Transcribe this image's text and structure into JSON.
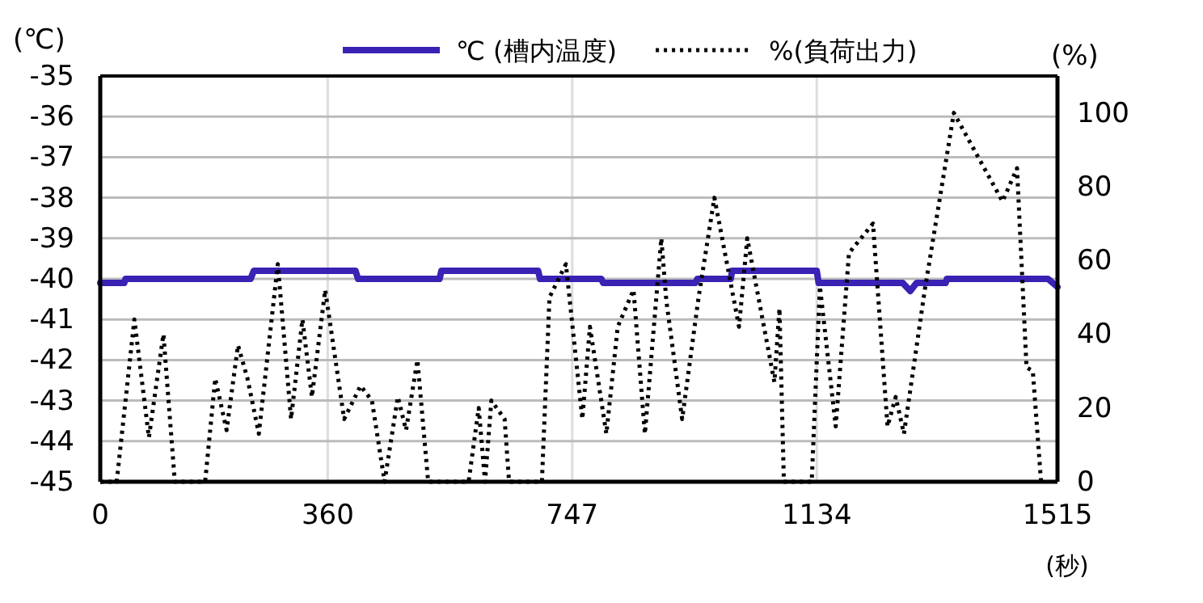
{
  "chart_data": {
    "type": "line",
    "xlabel": "(秒)",
    "ylabel": "(℃)",
    "y2label": "(%)",
    "xlim": [
      0,
      1515
    ],
    "xticks": [
      0,
      360,
      747,
      1134,
      1515
    ],
    "ylim": [
      -45,
      -35
    ],
    "yticks": [
      -45,
      -44,
      -43,
      -42,
      -41,
      -40,
      -39,
      -38,
      -37,
      -36,
      -35
    ],
    "y2lim": [
      0,
      110
    ],
    "y2ticks": [
      0,
      20,
      40,
      60,
      80,
      100
    ],
    "grid": true,
    "legend": "top",
    "marker": "none",
    "series": [
      {
        "name": "℃ (槽内温度)",
        "color": "#3a22b4",
        "line_style": "solid",
        "x": [
          0,
          38,
          40,
          238,
          243,
          404,
          408,
          537,
          540,
          693,
          696,
          793,
          796,
          942,
          945,
          998,
          1000,
          1134,
          1137,
          1270,
          1282,
          1292,
          1338,
          1340,
          1500,
          1515
        ],
        "values": [
          -40.1,
          -40.1,
          -40,
          -40,
          -39.8,
          -39.8,
          -40,
          -40,
          -39.8,
          -39.8,
          -40,
          -40,
          -40.1,
          -40.1,
          -40,
          -40,
          -39.8,
          -39.8,
          -40.1,
          -40.1,
          -40.3,
          -40.1,
          -40.1,
          -40,
          -40,
          -40.2
        ]
      },
      {
        "name": "%(負荷出力)",
        "color": "#000000",
        "line_style": "dotted",
        "axis": "y2",
        "x": [
          0,
          26,
          54,
          77,
          100,
          118,
          166,
          182,
          200,
          218,
          233,
          251,
          281,
          302,
          320,
          335,
          356,
          386,
          412,
          430,
          450,
          471,
          484,
          502,
          519,
          583,
          599,
          609,
          619,
          640,
          647,
          699,
          711,
          737,
          763,
          775,
          801,
          819,
          844,
          862,
          888,
          896,
          921,
          947,
          972,
          1011,
          1024,
          1067,
          1075,
          1082,
          1126,
          1139,
          1164,
          1185,
          1223,
          1246,
          1259,
          1272,
          1305,
          1351,
          1428,
          1451,
          1466,
          1476,
          1489
        ],
        "values": [
          0,
          0,
          44,
          12,
          40,
          0,
          0,
          28,
          14,
          37,
          28,
          13,
          59,
          17,
          44,
          23,
          52,
          17,
          26,
          22,
          0,
          23,
          14,
          33,
          0,
          0,
          20,
          0,
          22,
          17,
          0,
          0,
          50,
          59,
          17,
          42,
          13,
          42,
          52,
          13,
          66,
          49,
          17,
          50,
          77,
          42,
          66,
          27,
          47,
          0,
          0,
          53,
          15,
          62,
          70,
          15,
          23,
          13,
          52,
          100,
          76,
          85,
          31,
          30,
          0
        ]
      }
    ]
  }
}
